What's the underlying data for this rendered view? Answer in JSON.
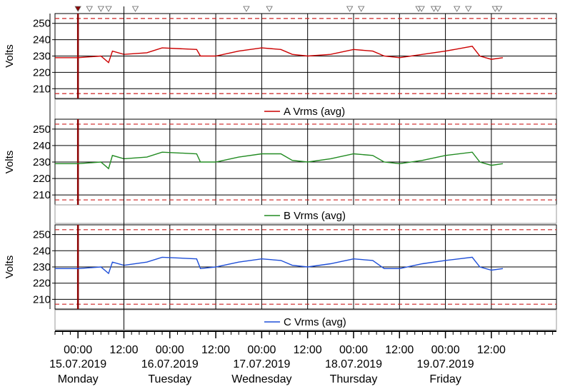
{
  "chart_data": {
    "type": "line",
    "x_range": [
      "2019-07-14T18:00",
      "2019-07-20T05:00"
    ],
    "panels": [
      {
        "ylabel": "Volts",
        "ylim": [
          204,
          256
        ],
        "yticks": [
          210,
          220,
          230,
          240,
          250
        ],
        "limit_lines": [
          207,
          253
        ],
        "legend": "A Vrms (avg)",
        "series": [
          {
            "name": "A Vrms (avg)",
            "color": "#cc0000",
            "points": [
              [
                "2019-07-14T18:00",
                229
              ],
              [
                "2019-07-15T00:00",
                229
              ],
              [
                "2019-07-15T06:00",
                230
              ],
              [
                "2019-07-15T08:00",
                226
              ],
              [
                "2019-07-15T09:00",
                233
              ],
              [
                "2019-07-15T12:00",
                231
              ],
              [
                "2019-07-15T18:00",
                232
              ],
              [
                "2019-07-15T22:00",
                235
              ],
              [
                "2019-07-16T07:00",
                234
              ],
              [
                "2019-07-16T08:00",
                230
              ],
              [
                "2019-07-16T12:00",
                230
              ],
              [
                "2019-07-16T18:00",
                233
              ],
              [
                "2019-07-17T00:00",
                235
              ],
              [
                "2019-07-17T05:00",
                234
              ],
              [
                "2019-07-17T08:00",
                231
              ],
              [
                "2019-07-17T12:00",
                230
              ],
              [
                "2019-07-17T18:00",
                231
              ],
              [
                "2019-07-18T00:00",
                234
              ],
              [
                "2019-07-18T05:00",
                233
              ],
              [
                "2019-07-18T08:00",
                230
              ],
              [
                "2019-07-18T12:00",
                229
              ],
              [
                "2019-07-18T18:00",
                231
              ],
              [
                "2019-07-19T00:00",
                233
              ],
              [
                "2019-07-19T07:00",
                236
              ],
              [
                "2019-07-19T09:00",
                230
              ],
              [
                "2019-07-19T12:00",
                228
              ],
              [
                "2019-07-19T15:00",
                229
              ]
            ]
          }
        ]
      },
      {
        "ylabel": "Volts",
        "ylim": [
          204,
          256
        ],
        "yticks": [
          210,
          220,
          230,
          240,
          250
        ],
        "limit_lines": [
          207,
          253
        ],
        "legend": "B Vrms (avg)",
        "series": [
          {
            "name": "B Vrms (avg)",
            "color": "#228b22",
            "points": [
              [
                "2019-07-14T18:00",
                229
              ],
              [
                "2019-07-15T00:00",
                229
              ],
              [
                "2019-07-15T06:00",
                230
              ],
              [
                "2019-07-15T08:00",
                226
              ],
              [
                "2019-07-15T09:00",
                234
              ],
              [
                "2019-07-15T12:00",
                232
              ],
              [
                "2019-07-15T18:00",
                233
              ],
              [
                "2019-07-15T22:00",
                236
              ],
              [
                "2019-07-16T07:00",
                235
              ],
              [
                "2019-07-16T08:00",
                230
              ],
              [
                "2019-07-16T12:00",
                230
              ],
              [
                "2019-07-16T18:00",
                233
              ],
              [
                "2019-07-17T00:00",
                235
              ],
              [
                "2019-07-17T05:00",
                235
              ],
              [
                "2019-07-17T08:00",
                231
              ],
              [
                "2019-07-17T12:00",
                230
              ],
              [
                "2019-07-17T18:00",
                232
              ],
              [
                "2019-07-18T00:00",
                235
              ],
              [
                "2019-07-18T05:00",
                234
              ],
              [
                "2019-07-18T08:00",
                230
              ],
              [
                "2019-07-18T12:00",
                229
              ],
              [
                "2019-07-18T18:00",
                231
              ],
              [
                "2019-07-19T00:00",
                234
              ],
              [
                "2019-07-19T07:00",
                236
              ],
              [
                "2019-07-19T09:00",
                230
              ],
              [
                "2019-07-19T12:00",
                228
              ],
              [
                "2019-07-19T15:00",
                229
              ]
            ]
          }
        ]
      },
      {
        "ylabel": "Volts",
        "ylim": [
          204,
          256
        ],
        "yticks": [
          210,
          220,
          230,
          240,
          250
        ],
        "limit_lines": [
          207,
          253
        ],
        "legend": "C Vrms (avg)",
        "series": [
          {
            "name": "C Vrms (avg)",
            "color": "#1f4fd8",
            "points": [
              [
                "2019-07-14T18:00",
                229
              ],
              [
                "2019-07-15T00:00",
                229
              ],
              [
                "2019-07-15T06:00",
                230
              ],
              [
                "2019-07-15T08:00",
                226
              ],
              [
                "2019-07-15T09:00",
                233
              ],
              [
                "2019-07-15T12:00",
                231
              ],
              [
                "2019-07-15T18:00",
                233
              ],
              [
                "2019-07-15T22:00",
                236
              ],
              [
                "2019-07-16T07:00",
                235
              ],
              [
                "2019-07-16T08:00",
                229
              ],
              [
                "2019-07-16T12:00",
                230
              ],
              [
                "2019-07-16T18:00",
                233
              ],
              [
                "2019-07-17T00:00",
                235
              ],
              [
                "2019-07-17T05:00",
                234
              ],
              [
                "2019-07-17T08:00",
                231
              ],
              [
                "2019-07-17T12:00",
                230
              ],
              [
                "2019-07-17T18:00",
                232
              ],
              [
                "2019-07-18T00:00",
                235
              ],
              [
                "2019-07-18T05:00",
                234
              ],
              [
                "2019-07-18T08:00",
                229
              ],
              [
                "2019-07-18T12:00",
                229
              ],
              [
                "2019-07-18T18:00",
                232
              ],
              [
                "2019-07-19T00:00",
                234
              ],
              [
                "2019-07-19T07:00",
                236
              ],
              [
                "2019-07-19T09:00",
                230
              ],
              [
                "2019-07-19T12:00",
                228
              ],
              [
                "2019-07-19T15:00",
                229
              ]
            ]
          }
        ]
      }
    ],
    "x_ticks": [
      {
        "t": "2019-07-15T00:00",
        "time": "00:00",
        "date": "15.07.2019",
        "day": "Monday"
      },
      {
        "t": "2019-07-15T12:00",
        "time": "12:00"
      },
      {
        "t": "2019-07-16T00:00",
        "time": "00:00",
        "date": "16.07.2019",
        "day": "Tuesday"
      },
      {
        "t": "2019-07-16T12:00",
        "time": "12:00"
      },
      {
        "t": "2019-07-17T00:00",
        "time": "00:00",
        "date": "17.07.2019",
        "day": "Wednesday"
      },
      {
        "t": "2019-07-17T12:00",
        "time": "12:00"
      },
      {
        "t": "2019-07-18T00:00",
        "time": "00:00",
        "date": "18.07.2019",
        "day": "Thursday"
      },
      {
        "t": "2019-07-18T12:00",
        "time": "12:00"
      },
      {
        "t": "2019-07-19T00:00",
        "time": "00:00",
        "date": "19.07.2019",
        "day": "Friday"
      },
      {
        "t": "2019-07-19T12:00",
        "time": "12:00"
      }
    ],
    "event_markers": [
      {
        "t": "2019-07-15T00:00",
        "color": "#8b0000"
      },
      {
        "t": "2019-07-15T03:00",
        "color": "#ffffff"
      },
      {
        "t": "2019-07-15T06:00",
        "color": "#ffffff"
      },
      {
        "t": "2019-07-15T08:00",
        "color": "#ffffff"
      },
      {
        "t": "2019-07-15T15:00",
        "color": "#ffffff"
      },
      {
        "t": "2019-07-16T20:00",
        "color": "#ffffff"
      },
      {
        "t": "2019-07-17T02:00",
        "color": "#ffffff"
      },
      {
        "t": "2019-07-17T23:00",
        "color": "#ffffff"
      },
      {
        "t": "2019-07-18T02:00",
        "color": "#ffffff"
      },
      {
        "t": "2019-07-18T17:00",
        "color": "#ffffff"
      },
      {
        "t": "2019-07-18T17:45",
        "color": "#ffffff"
      },
      {
        "t": "2019-07-18T21:00",
        "color": "#ffffff"
      },
      {
        "t": "2019-07-18T22:00",
        "color": "#ffffff"
      },
      {
        "t": "2019-07-19T03:00",
        "color": "#ffffff"
      },
      {
        "t": "2019-07-19T06:00",
        "color": "#ffffff"
      },
      {
        "t": "2019-07-19T13:00",
        "color": "#ffffff"
      },
      {
        "t": "2019-07-19T14:00",
        "color": "#ffffff"
      }
    ],
    "cursor_marker": "2019-07-15T00:00",
    "reference_line": "2019-07-15T12:00",
    "grid": true,
    "legend_position": "below-each-panel"
  }
}
